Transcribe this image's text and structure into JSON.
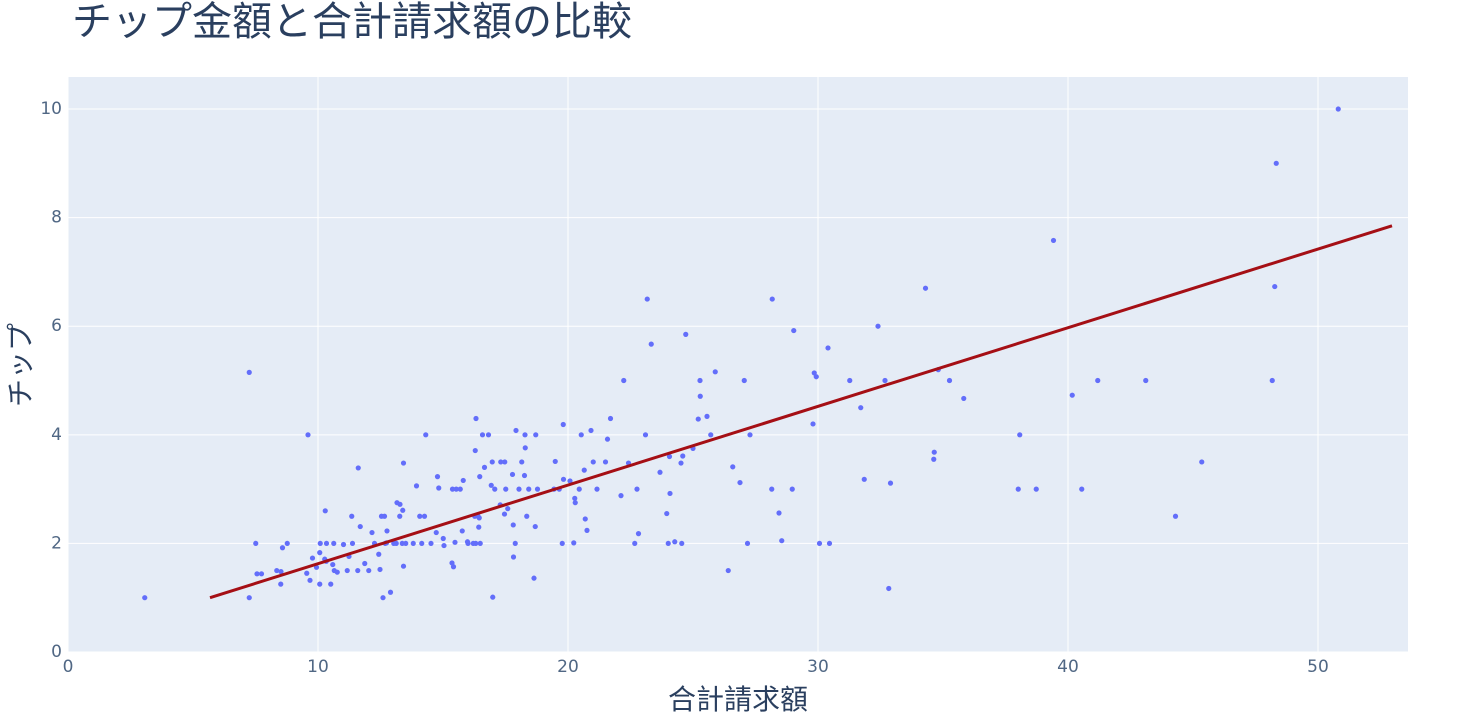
{
  "chart_data": {
    "type": "scatter",
    "title": "チップ金額と合計請求額の比較",
    "x_label": "合計請求額",
    "y_label": "チップ",
    "xlim": [
      0,
      53.6
    ],
    "ylim": [
      0,
      10.59
    ],
    "xticks": [
      0,
      10,
      20,
      30,
      40,
      50
    ],
    "yticks": [
      0,
      2,
      4,
      6,
      8,
      10
    ],
    "grid": true,
    "series": [
      {
        "mode": "markers",
        "color": "#636efa",
        "x": [
          3.07,
          7.25,
          7.25,
          7.56,
          7.51,
          9.6,
          50.81,
          48.33,
          48.27,
          48.17,
          39.42,
          34.3,
          32.68,
          32.4,
          30.4,
          29.03,
          28.17,
          23.17,
          23.33,
          24.71,
          25.89,
          34.81,
          35.26,
          31.27,
          41.19,
          43.11,
          40.17,
          35.83,
          38.07,
          34.63,
          34.65,
          38.01,
          38.73,
          40.55,
          45.35,
          44.3,
          32.83,
          31.85,
          32.9,
          31.71,
          29.85,
          29.93,
          29.8,
          30.06,
          30.46,
          28.97,
          28.44,
          28.55,
          28.15,
          27.18,
          27.05,
          27.28,
          26.88,
          26.41,
          26.59,
          25.71,
          25.56,
          25.28,
          25.29,
          25.21,
          25.0,
          24.52,
          24.55,
          24.59,
          24.27,
          24.08,
          24.01,
          24.06,
          23.95,
          23.68,
          23.1,
          22.76,
          22.67,
          22.82,
          22.42,
          22.23,
          22.12,
          21.7,
          21.58,
          21.5,
          21.01,
          21.16,
          20.92,
          20.76,
          20.69,
          20.65,
          20.53,
          20.45,
          20.29,
          20.27,
          20.23,
          20.08,
          19.82,
          19.81,
          19.77,
          19.65,
          19.49,
          19.44,
          18.78,
          18.71,
          18.69,
          18.64,
          18.43,
          18.35,
          18.29,
          18.28,
          18.26,
          18.15,
          18.04,
          17.92,
          17.89,
          17.82,
          17.81,
          17.78,
          17.59,
          17.51,
          17.47,
          17.46,
          17.31,
          17.29,
          17.07,
          16.99,
          16.97,
          16.93,
          16.82,
          16.66,
          16.58,
          16.49,
          16.47,
          16.45,
          16.43,
          16.4,
          16.32,
          16.31,
          16.29,
          16.27,
          16.21,
          16.0,
          15.98,
          15.81,
          15.77,
          15.69,
          15.53,
          15.48,
          15.42,
          15.38,
          15.36,
          15.04,
          15.01,
          14.83,
          14.78,
          14.73,
          14.52,
          14.31,
          14.26,
          14.15,
          14.07,
          13.94,
          13.81,
          13.51,
          13.42,
          13.42,
          13.39,
          13.37,
          13.28,
          13.27,
          13.16,
          13.13,
          13.03,
          12.9,
          12.76,
          12.74,
          12.69,
          12.66,
          12.6,
          12.54,
          12.48,
          12.43,
          12.26,
          12.16,
          12.03,
          11.87,
          11.69,
          11.61,
          11.59,
          11.38,
          11.35,
          11.24,
          11.17,
          11.02,
          10.77,
          10.65,
          10.63,
          10.59,
          10.51,
          10.34,
          10.33,
          10.29,
          10.27,
          10.09,
          10.07,
          10.07,
          9.94,
          9.78,
          9.68,
          9.55,
          8.77,
          8.58,
          8.52,
          8.51,
          8.35,
          7.74
        ],
        "y": [
          1.0,
          5.15,
          1.0,
          1.44,
          2.0,
          4.0,
          10.0,
          9.0,
          6.73,
          5.0,
          7.58,
          6.7,
          5.0,
          6.0,
          5.6,
          5.92,
          6.5,
          6.5,
          5.67,
          5.85,
          5.16,
          5.2,
          5.0,
          5.0,
          5.0,
          5.0,
          4.73,
          4.67,
          4.0,
          3.55,
          3.68,
          3.0,
          3.0,
          3.0,
          3.5,
          2.5,
          1.17,
          3.18,
          3.11,
          4.5,
          5.14,
          5.07,
          4.2,
          2.0,
          2.0,
          3.0,
          2.56,
          2.05,
          3.0,
          2.0,
          5.0,
          4.0,
          3.12,
          1.5,
          3.41,
          4.0,
          4.34,
          5.0,
          4.71,
          4.29,
          3.75,
          3.48,
          2.0,
          3.61,
          2.03,
          2.92,
          2.0,
          3.6,
          2.55,
          3.31,
          4.0,
          3.0,
          2.0,
          2.18,
          3.48,
          5.0,
          2.88,
          4.3,
          3.92,
          3.5,
          3.5,
          3.0,
          4.08,
          2.24,
          2.45,
          3.35,
          4.0,
          3.0,
          2.75,
          2.83,
          2.01,
          3.15,
          3.18,
          4.19,
          2.0,
          3.0,
          3.51,
          3.0,
          3.0,
          4.0,
          2.31,
          1.36,
          3.0,
          2.5,
          3.76,
          4.0,
          3.25,
          3.5,
          3.0,
          4.08,
          2.0,
          1.75,
          2.34,
          3.27,
          2.64,
          3.0,
          3.5,
          2.54,
          3.5,
          2.71,
          3.0,
          1.01,
          3.5,
          3.07,
          4.0,
          3.4,
          4.0,
          2.0,
          3.23,
          2.47,
          2.3,
          2.5,
          4.3,
          2.0,
          3.71,
          2.5,
          2.0,
          2.0,
          2.03,
          3.16,
          2.23,
          3.0,
          3.0,
          2.02,
          1.57,
          3.0,
          1.64,
          1.96,
          2.09,
          3.02,
          3.23,
          2.2,
          2.0,
          4.0,
          2.5,
          2.0,
          2.5,
          3.06,
          2.0,
          2.0,
          3.48,
          1.58,
          2.61,
          2.0,
          2.72,
          2.5,
          2.75,
          2.0,
          2.0,
          1.1,
          2.23,
          2.01,
          2.0,
          2.5,
          1.0,
          2.5,
          1.52,
          1.8,
          2.0,
          2.2,
          1.5,
          1.63,
          2.31,
          3.39,
          1.5,
          2.0,
          2.5,
          1.76,
          1.5,
          1.98,
          1.47,
          1.5,
          2.0,
          1.61,
          1.25,
          2.0,
          1.67,
          2.6,
          1.71,
          2.0,
          1.83,
          1.25,
          1.56,
          1.73,
          1.32,
          1.45,
          2.0,
          1.92,
          1.48,
          1.25,
          1.5,
          1.44
        ]
      },
      {
        "mode": "lines",
        "color": "#a50f15",
        "x": [
          5.68,
          52.96
        ],
        "y": [
          1.0,
          7.85
        ]
      }
    ]
  }
}
